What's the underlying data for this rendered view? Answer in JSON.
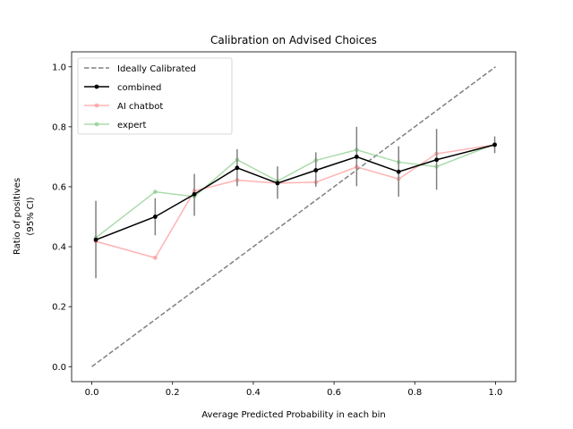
{
  "chart_data": {
    "type": "line",
    "title": "Calibration on Advised Choices",
    "xlabel": "Average Predicted Probability in each bin",
    "ylabel_lines": [
      "Ratio of positives",
      "(95% CI)"
    ],
    "xlim": [
      -0.05,
      1.05
    ],
    "ylim": [
      -0.05,
      1.05
    ],
    "xticks": [
      0.0,
      0.2,
      0.4,
      0.6,
      0.8,
      1.0
    ],
    "yticks": [
      0.0,
      0.2,
      0.4,
      0.6,
      0.8,
      1.0
    ],
    "xtick_labels": [
      "0.0",
      "0.2",
      "0.4",
      "0.6",
      "0.8",
      "1.0"
    ],
    "ytick_labels": [
      "0.0",
      "0.2",
      "0.4",
      "0.6",
      "0.8",
      "1.0"
    ],
    "grid": false,
    "legend_position": "top-left",
    "series": [
      {
        "name": "Ideally Calibrated",
        "style": "dashed",
        "color": "#808080",
        "marker": false,
        "x": [
          0.0,
          1.0
        ],
        "y": [
          0.0,
          1.0
        ]
      },
      {
        "name": "combined",
        "style": "solid",
        "color": "#000000",
        "marker": true,
        "x": [
          0.01,
          0.157,
          0.254,
          0.36,
          0.46,
          0.555,
          0.656,
          0.76,
          0.854,
          0.998
        ],
        "y": [
          0.423,
          0.5,
          0.575,
          0.663,
          0.612,
          0.655,
          0.7,
          0.65,
          0.69,
          0.74
        ],
        "ci_low": [
          0.295,
          0.438,
          0.503,
          0.602,
          0.56,
          0.6,
          0.602,
          0.567,
          0.59,
          0.712
        ],
        "ci_high": [
          0.553,
          0.562,
          0.643,
          0.725,
          0.668,
          0.715,
          0.8,
          0.735,
          0.793,
          0.768
        ]
      },
      {
        "name": "AI chatbot",
        "style": "solid",
        "color": "#ff9999",
        "marker": true,
        "x": [
          0.01,
          0.157,
          0.254,
          0.36,
          0.46,
          0.555,
          0.656,
          0.76,
          0.854,
          0.998
        ],
        "y": [
          0.418,
          0.363,
          0.586,
          0.622,
          0.612,
          0.615,
          0.666,
          0.626,
          0.71,
          0.74
        ]
      },
      {
        "name": "expert",
        "style": "solid",
        "color": "#8fcf8f",
        "marker": true,
        "x": [
          0.01,
          0.157,
          0.254,
          0.36,
          0.46,
          0.555,
          0.656,
          0.76,
          0.854,
          0.998
        ],
        "y": [
          0.43,
          0.583,
          0.567,
          0.69,
          0.619,
          0.688,
          0.723,
          0.682,
          0.667,
          0.742
        ]
      }
    ],
    "colors": {
      "axis": "#000000",
      "errorbar": "#808080"
    }
  }
}
